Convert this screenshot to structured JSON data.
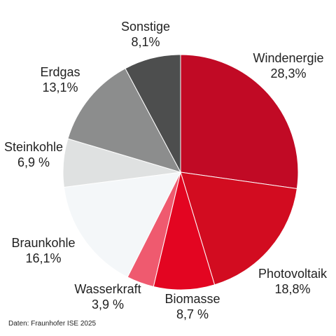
{
  "chart_data": {
    "type": "pie",
    "title": "",
    "start_angle_deg": 0,
    "direction": "clockwise",
    "slices": [
      {
        "label": "Windenergie",
        "value": 28.3,
        "display": "28,3%",
        "color": "#c10a25"
      },
      {
        "label": "Photovoltaik",
        "value": 18.8,
        "display": "18,8%",
        "color": "#d20c20"
      },
      {
        "label": "Biomasse",
        "value": 8.7,
        "display": "8,7 %",
        "color": "#e30521"
      },
      {
        "label": "Wasserkraft",
        "value": 3.9,
        "display": "3,9 %",
        "color": "#ef5a6f"
      },
      {
        "label": "Braunkohle",
        "value": 16.1,
        "display": "16,1%",
        "color": "#f4f7f9"
      },
      {
        "label": "Steinkohle",
        "value": 6.9,
        "display": "6,9 %",
        "color": "#dfe1e1"
      },
      {
        "label": "Erdgas",
        "value": 13.1,
        "display": "13,1%",
        "color": "#8c8d8d"
      },
      {
        "label": "Sonstige",
        "value": 8.1,
        "display": "8,1%",
        "color": "#4d4e4e"
      }
    ]
  },
  "source": "Daten: Fraunhofer ISE 2025"
}
